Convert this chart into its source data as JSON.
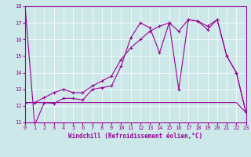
{
  "xlabel": "Windchill (Refroidissement éolien,°C)",
  "xlim": [
    0,
    23
  ],
  "ylim": [
    11,
    18
  ],
  "yticks": [
    11,
    12,
    13,
    14,
    15,
    16,
    17,
    18
  ],
  "xticks": [
    0,
    1,
    2,
    3,
    4,
    5,
    6,
    7,
    8,
    9,
    10,
    11,
    12,
    13,
    14,
    15,
    16,
    17,
    18,
    19,
    20,
    21,
    22,
    23
  ],
  "bg_color": "#cde8e8",
  "line_color": "#990099",
  "line1_x": [
    0,
    1,
    2,
    3,
    4,
    5,
    6,
    7,
    8,
    9,
    10,
    11,
    12,
    13,
    14,
    15,
    16,
    17,
    18,
    19,
    20,
    21,
    22,
    23
  ],
  "line1_y": [
    18.0,
    10.85,
    12.2,
    12.15,
    12.45,
    12.45,
    12.35,
    13.0,
    13.1,
    13.2,
    14.4,
    16.1,
    17.0,
    16.7,
    15.2,
    17.0,
    13.0,
    17.2,
    17.1,
    16.6,
    17.2,
    15.0,
    14.0,
    11.6
  ],
  "line2_x": [
    0,
    1,
    2,
    3,
    4,
    5,
    6,
    7,
    8,
    9,
    10,
    11,
    12,
    13,
    14,
    15,
    16,
    17,
    18,
    19,
    20,
    21,
    22,
    23
  ],
  "line2_y": [
    12.2,
    12.2,
    12.2,
    12.2,
    12.2,
    12.2,
    12.2,
    12.2,
    12.2,
    12.2,
    12.2,
    12.2,
    12.2,
    12.2,
    12.2,
    12.2,
    12.2,
    12.2,
    12.2,
    12.2,
    12.2,
    12.2,
    12.2,
    11.6
  ],
  "line3_x": [
    0,
    1,
    2,
    3,
    4,
    5,
    6,
    7,
    8,
    9,
    10,
    11,
    12,
    13,
    14,
    15,
    16,
    17,
    18,
    19,
    20,
    21,
    22,
    23
  ],
  "line3_y": [
    12.2,
    12.2,
    12.5,
    12.8,
    13.0,
    12.8,
    12.8,
    13.2,
    13.5,
    13.8,
    14.8,
    15.5,
    16.0,
    16.5,
    16.8,
    17.0,
    16.5,
    17.2,
    17.1,
    16.8,
    17.2,
    15.0,
    14.0,
    11.6
  ],
  "tick_fontsize": 5,
  "xlabel_fontsize": 5.5
}
